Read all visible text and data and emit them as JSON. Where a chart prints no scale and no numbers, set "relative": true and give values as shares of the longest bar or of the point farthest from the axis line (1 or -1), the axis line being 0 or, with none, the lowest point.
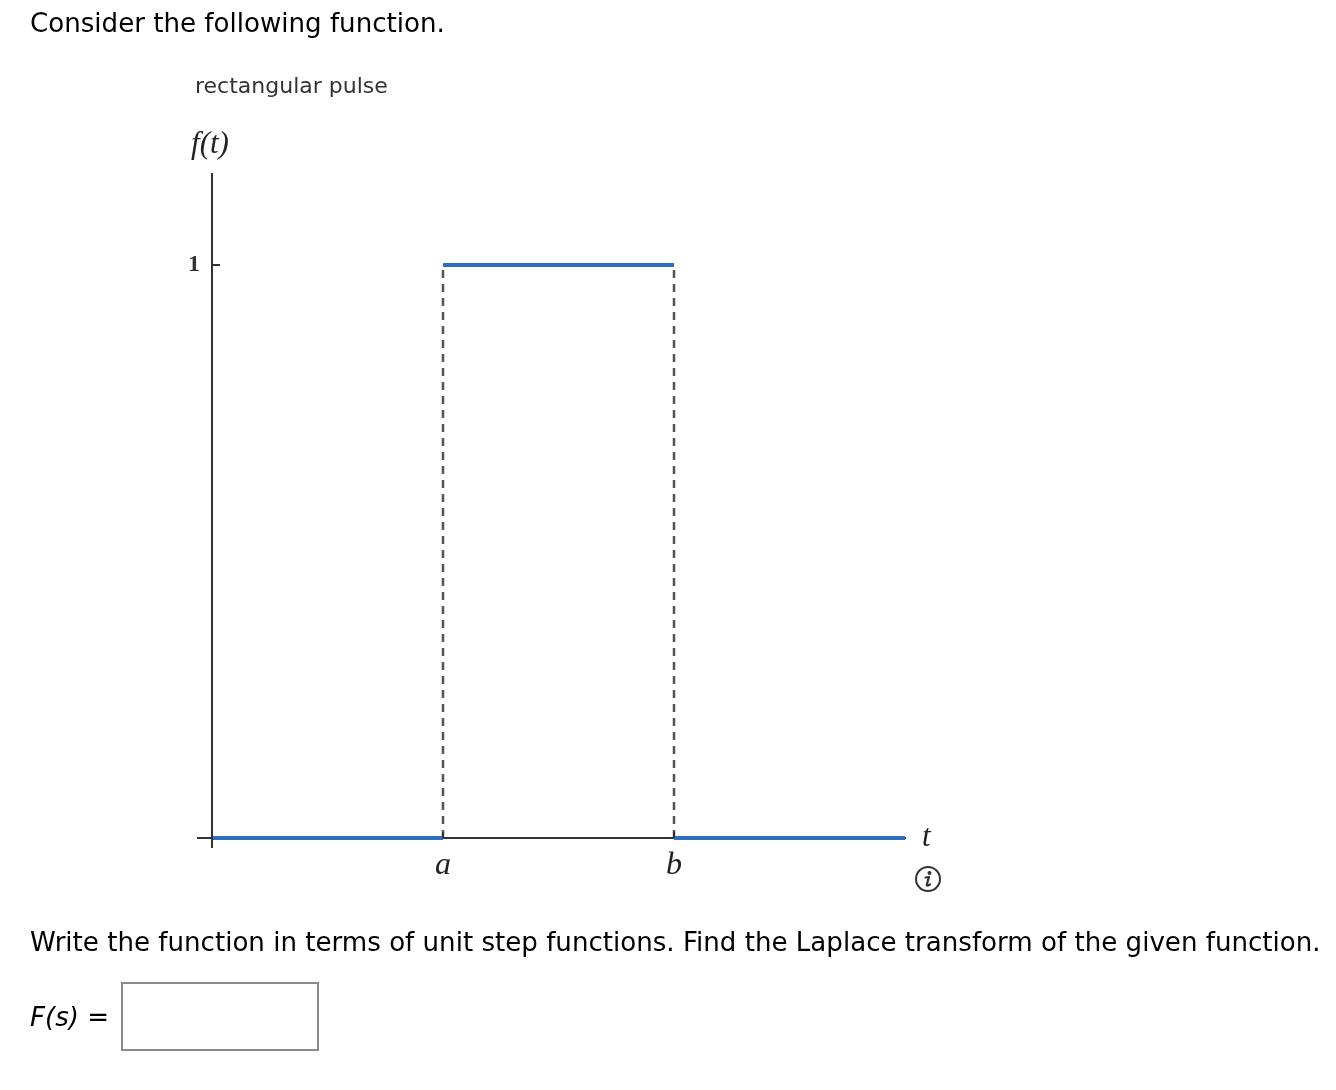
{
  "chart_data": {
    "type": "step",
    "title": "rectangular pulse",
    "xlabel": "t",
    "ylabel": "f(t)",
    "annotations": [
      "Consider the following function.",
      "1",
      "Write the function in terms of unit step functions. Find the Laplace transform of the given function.",
      "F(s) ="
    ],
    "categories": [
      null,
      "a",
      "b",
      null
    ],
    "relative": true,
    "marker": "none",
    "series": [
      {
        "color": "#2f6fbf",
        "values": [
          0,
          1,
          0,
          0
        ]
      }
    ],
    "ref_lines": [
      {
        "axis": "x",
        "value": "a",
        "color": "#555555",
        "line_style": "dashed"
      },
      {
        "axis": "x",
        "value": "b",
        "color": "#555555",
        "line_style": "dashed"
      }
    ]
  }
}
